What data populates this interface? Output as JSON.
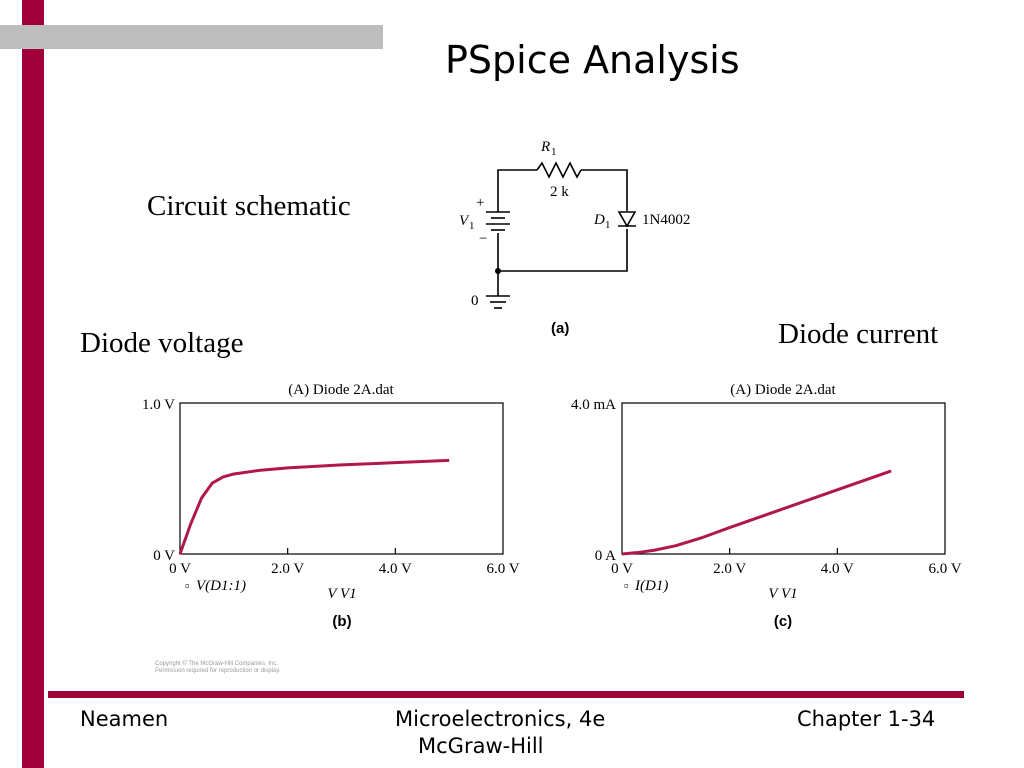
{
  "slide": {
    "title": "PSpice Analysis",
    "labels": {
      "circuit": "Circuit schematic",
      "voltage": "Diode voltage",
      "current": "Diode current"
    },
    "colors": {
      "accent": "#a0003a",
      "gray_band": "#bdbdbd",
      "curve": "#b0174f"
    }
  },
  "schematic": {
    "r1": "R",
    "r1_sub": "1",
    "r1_value": "2 k",
    "v1": "V",
    "v1_sub": "1",
    "plus": "+",
    "minus": "−",
    "d1": "D",
    "d1_sub": "1",
    "d1_part": "1N4002",
    "ground": "0",
    "caption": "(a)"
  },
  "chart_data": [
    {
      "type": "line",
      "title": "(A) Diode 2A.dat",
      "xlabel": "V V1",
      "ylabel": "",
      "xlim": [
        0,
        6
      ],
      "ylim": [
        0,
        1
      ],
      "x_ticks": [
        "0 V",
        "2.0 V",
        "4.0 V",
        "6.0 V"
      ],
      "y_ticks": [
        "0 V",
        "1.0 V"
      ],
      "legend": "V(D1:1)",
      "caption": "(b)",
      "series": [
        {
          "name": "V(D1:1)",
          "x": [
            0,
            0.2,
            0.4,
            0.6,
            0.8,
            1.0,
            1.5,
            2.0,
            3.0,
            4.0,
            5.0
          ],
          "y": [
            0,
            0.2,
            0.37,
            0.47,
            0.51,
            0.53,
            0.555,
            0.57,
            0.59,
            0.605,
            0.62
          ]
        }
      ]
    },
    {
      "type": "line",
      "title": "(A) Diode 2A.dat",
      "xlabel": "V V1",
      "ylabel": "",
      "xlim": [
        0,
        6
      ],
      "ylim": [
        0,
        4
      ],
      "x_ticks": [
        "0 V",
        "2.0 V",
        "4.0 V",
        "6.0 V"
      ],
      "y_ticks": [
        "0 A",
        "4.0 mA"
      ],
      "legend": "I(D1)",
      "caption": "(c)",
      "series": [
        {
          "name": "I(D1)",
          "x": [
            0,
            0.3,
            0.6,
            1.0,
            1.5,
            2.0,
            3.0,
            4.0,
            5.0
          ],
          "y": [
            0,
            0.04,
            0.1,
            0.22,
            0.44,
            0.7,
            1.2,
            1.7,
            2.2
          ]
        }
      ]
    }
  ],
  "footer": {
    "author": "Neamen",
    "book": "Microelectronics, 4e",
    "publisher": "McGraw-Hill",
    "chapter": "Chapter 1-34"
  },
  "copyright": {
    "line1": "Copyright © The McGraw-Hill Companies, Inc.",
    "line2": "Permission required for reproduction or display."
  }
}
